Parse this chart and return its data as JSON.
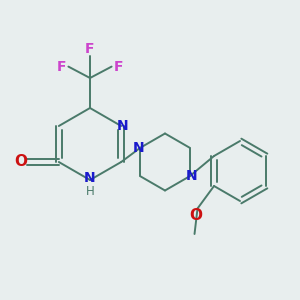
{
  "background_color": "#e8eeee",
  "bond_color": "#4a7a6a",
  "N_color": "#1a1acc",
  "O_color": "#cc1111",
  "F_color": "#cc44cc",
  "figsize": [
    3.0,
    3.0
  ],
  "dpi": 100,
  "xlim": [
    0,
    10
  ],
  "ylim": [
    0,
    10
  ]
}
